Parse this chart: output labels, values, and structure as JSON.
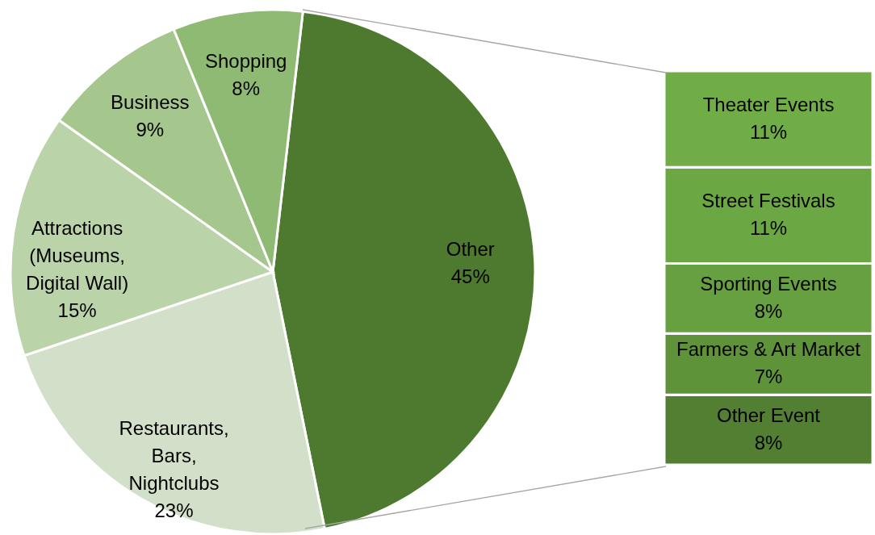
{
  "chart_data": [
    {
      "type": "pie",
      "categories": [
        "Other",
        "Restaurants, Bars, Nightclubs",
        "Attractions (Museums, Digital Wall)",
        "Business",
        "Shopping"
      ],
      "values": [
        45,
        23,
        15,
        9,
        8
      ],
      "colors": [
        "#4e7a2f",
        "#d3e0c9",
        "#bad3a9",
        "#a5c68c",
        "#8fba74"
      ],
      "value_labels": [
        "45%",
        "23%",
        "15%",
        "9%",
        "8%"
      ]
    },
    {
      "type": "bar",
      "stacked": true,
      "categories": [
        null
      ],
      "series": [
        {
          "name": "Other Event",
          "color": "#527f32",
          "values": [
            8
          ],
          "value_labels": [
            "8%"
          ]
        },
        {
          "name": "Farmers & Art Market",
          "color": "#5e933a",
          "values": [
            7
          ],
          "value_labels": [
            "7%"
          ]
        },
        {
          "name": "Sporting Events",
          "color": "#66a040",
          "values": [
            8
          ],
          "value_labels": [
            "8%"
          ]
        },
        {
          "name": "Street Festivals",
          "color": "#6ba844",
          "values": [
            11
          ],
          "value_labels": [
            "11%"
          ]
        },
        {
          "name": "Theater Events",
          "color": "#70ad47",
          "values": [
            11
          ],
          "value_labels": [
            "11%"
          ]
        }
      ]
    }
  ]
}
